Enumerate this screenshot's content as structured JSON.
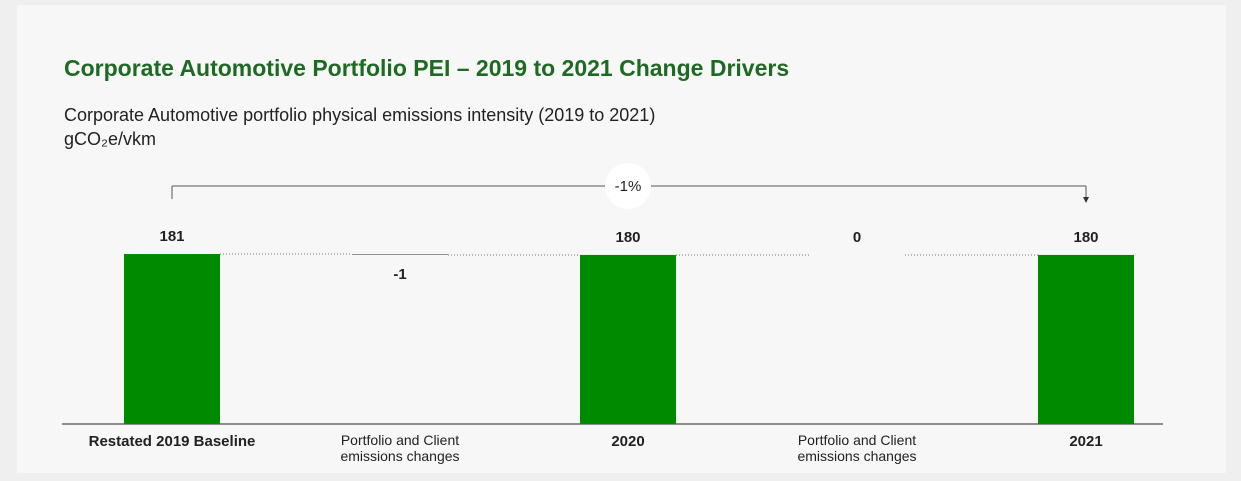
{
  "chart_data": {
    "type": "waterfall",
    "title": "Corporate Automotive Portfolio PEI – 2019 to 2021 Change Drivers",
    "subtitle": "Corporate Automotive portfolio physical emissions intensity (2019 to 2021)",
    "unit": "gCO₂e/vkm",
    "categories": [
      "Restated 2019 Baseline",
      "Portfolio and Client emissions changes",
      "2020",
      "Portfolio and Client emissions changes",
      "2021"
    ],
    "values": [
      181,
      -1,
      180,
      0,
      180
    ],
    "measure": [
      "absolute",
      "relative",
      "absolute",
      "relative",
      "absolute"
    ],
    "color": "#008a00",
    "delta_color": "#8c8c8c",
    "ylim": [
      0,
      190
    ],
    "annotation": "-1%"
  }
}
